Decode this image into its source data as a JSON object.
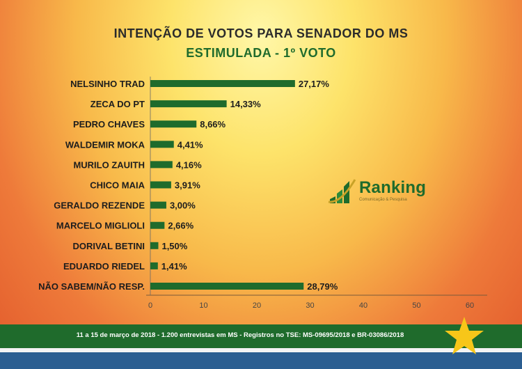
{
  "header": {
    "title": "INTENÇÃO DE VOTOS PARA SENADOR DO MS",
    "subtitle": "ESTIMULADA - 1º VOTO"
  },
  "logo": {
    "name": "Ranking",
    "tagline": "Comunicação & Pesquisa"
  },
  "footer": {
    "text": "11 a 15 de março de 2018 - 1.200 entrevistas em MS - Registros no TSE: MS-09695/2018 e BR-03086/2018"
  },
  "colors": {
    "bar": "#1f6b2c",
    "highlight_value": "#d42a1c",
    "footer_green": "#1f6b2c",
    "footer_blue": "#2b5e91",
    "star": "#f7c619"
  },
  "chart_data": {
    "type": "bar",
    "orientation": "horizontal",
    "categories": [
      "NELSINHO TRAD",
      "ZECA DO PT",
      "PEDRO CHAVES",
      "WALDEMIR MOKA",
      "MURILO ZAUITH",
      "CHICO MAIA",
      "GERALDO REZENDE",
      "MARCELO MIGLIOLI",
      "DORIVAL BETINI",
      "EDUARDO RIEDEL",
      "NÃO SABEM/NÃO RESP."
    ],
    "values": [
      27.17,
      14.33,
      8.66,
      4.41,
      4.16,
      3.91,
      3.0,
      2.66,
      1.5,
      1.41,
      28.79
    ],
    "value_labels": [
      "27,17%",
      "14,33%",
      "8,66%",
      "4,41%",
      "4,16%",
      "3,91%",
      "3,00%",
      "2,66%",
      "1,50%",
      "1,41%",
      "28,79%"
    ],
    "highlight_index": 10,
    "xlim": [
      0,
      60
    ],
    "xticks": [
      "0",
      "10",
      "20",
      "30",
      "40",
      "50",
      "60"
    ],
    "title": "INTENÇÃO DE VOTOS PARA SENADOR DO MS",
    "subtitle": "ESTIMULADA - 1º VOTO",
    "grid": false
  }
}
